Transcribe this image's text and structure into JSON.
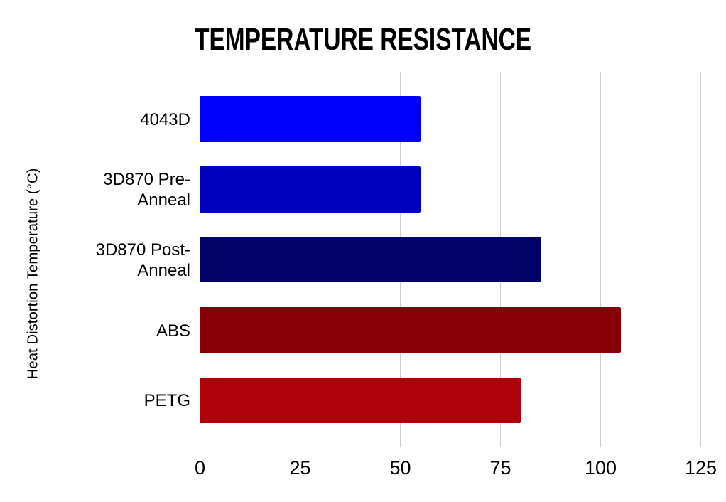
{
  "chart_data": {
    "type": "bar",
    "orientation": "horizontal",
    "title": "TEMPERATURE RESISTANCE",
    "categories": [
      "4043D",
      "3D870 Pre-Anneal",
      "3D870 Post-Anneal",
      "ABS",
      "PETG"
    ],
    "values": [
      55,
      55,
      85,
      105,
      80
    ],
    "bar_colors": [
      "#0000ff",
      "#0000bf",
      "#000066",
      "#870007",
      "#b00009"
    ],
    "ylabel": "Heat Distortion Temperature (°C)",
    "xlabel": "",
    "xlim": [
      0,
      125
    ],
    "xticks": [
      0,
      25,
      50,
      75,
      100,
      125
    ],
    "grid": true,
    "legend": false,
    "colors": {
      "background": "#ffffff",
      "gridline": "#cccccc",
      "axis_line": "#333333",
      "text": "#000000"
    }
  }
}
